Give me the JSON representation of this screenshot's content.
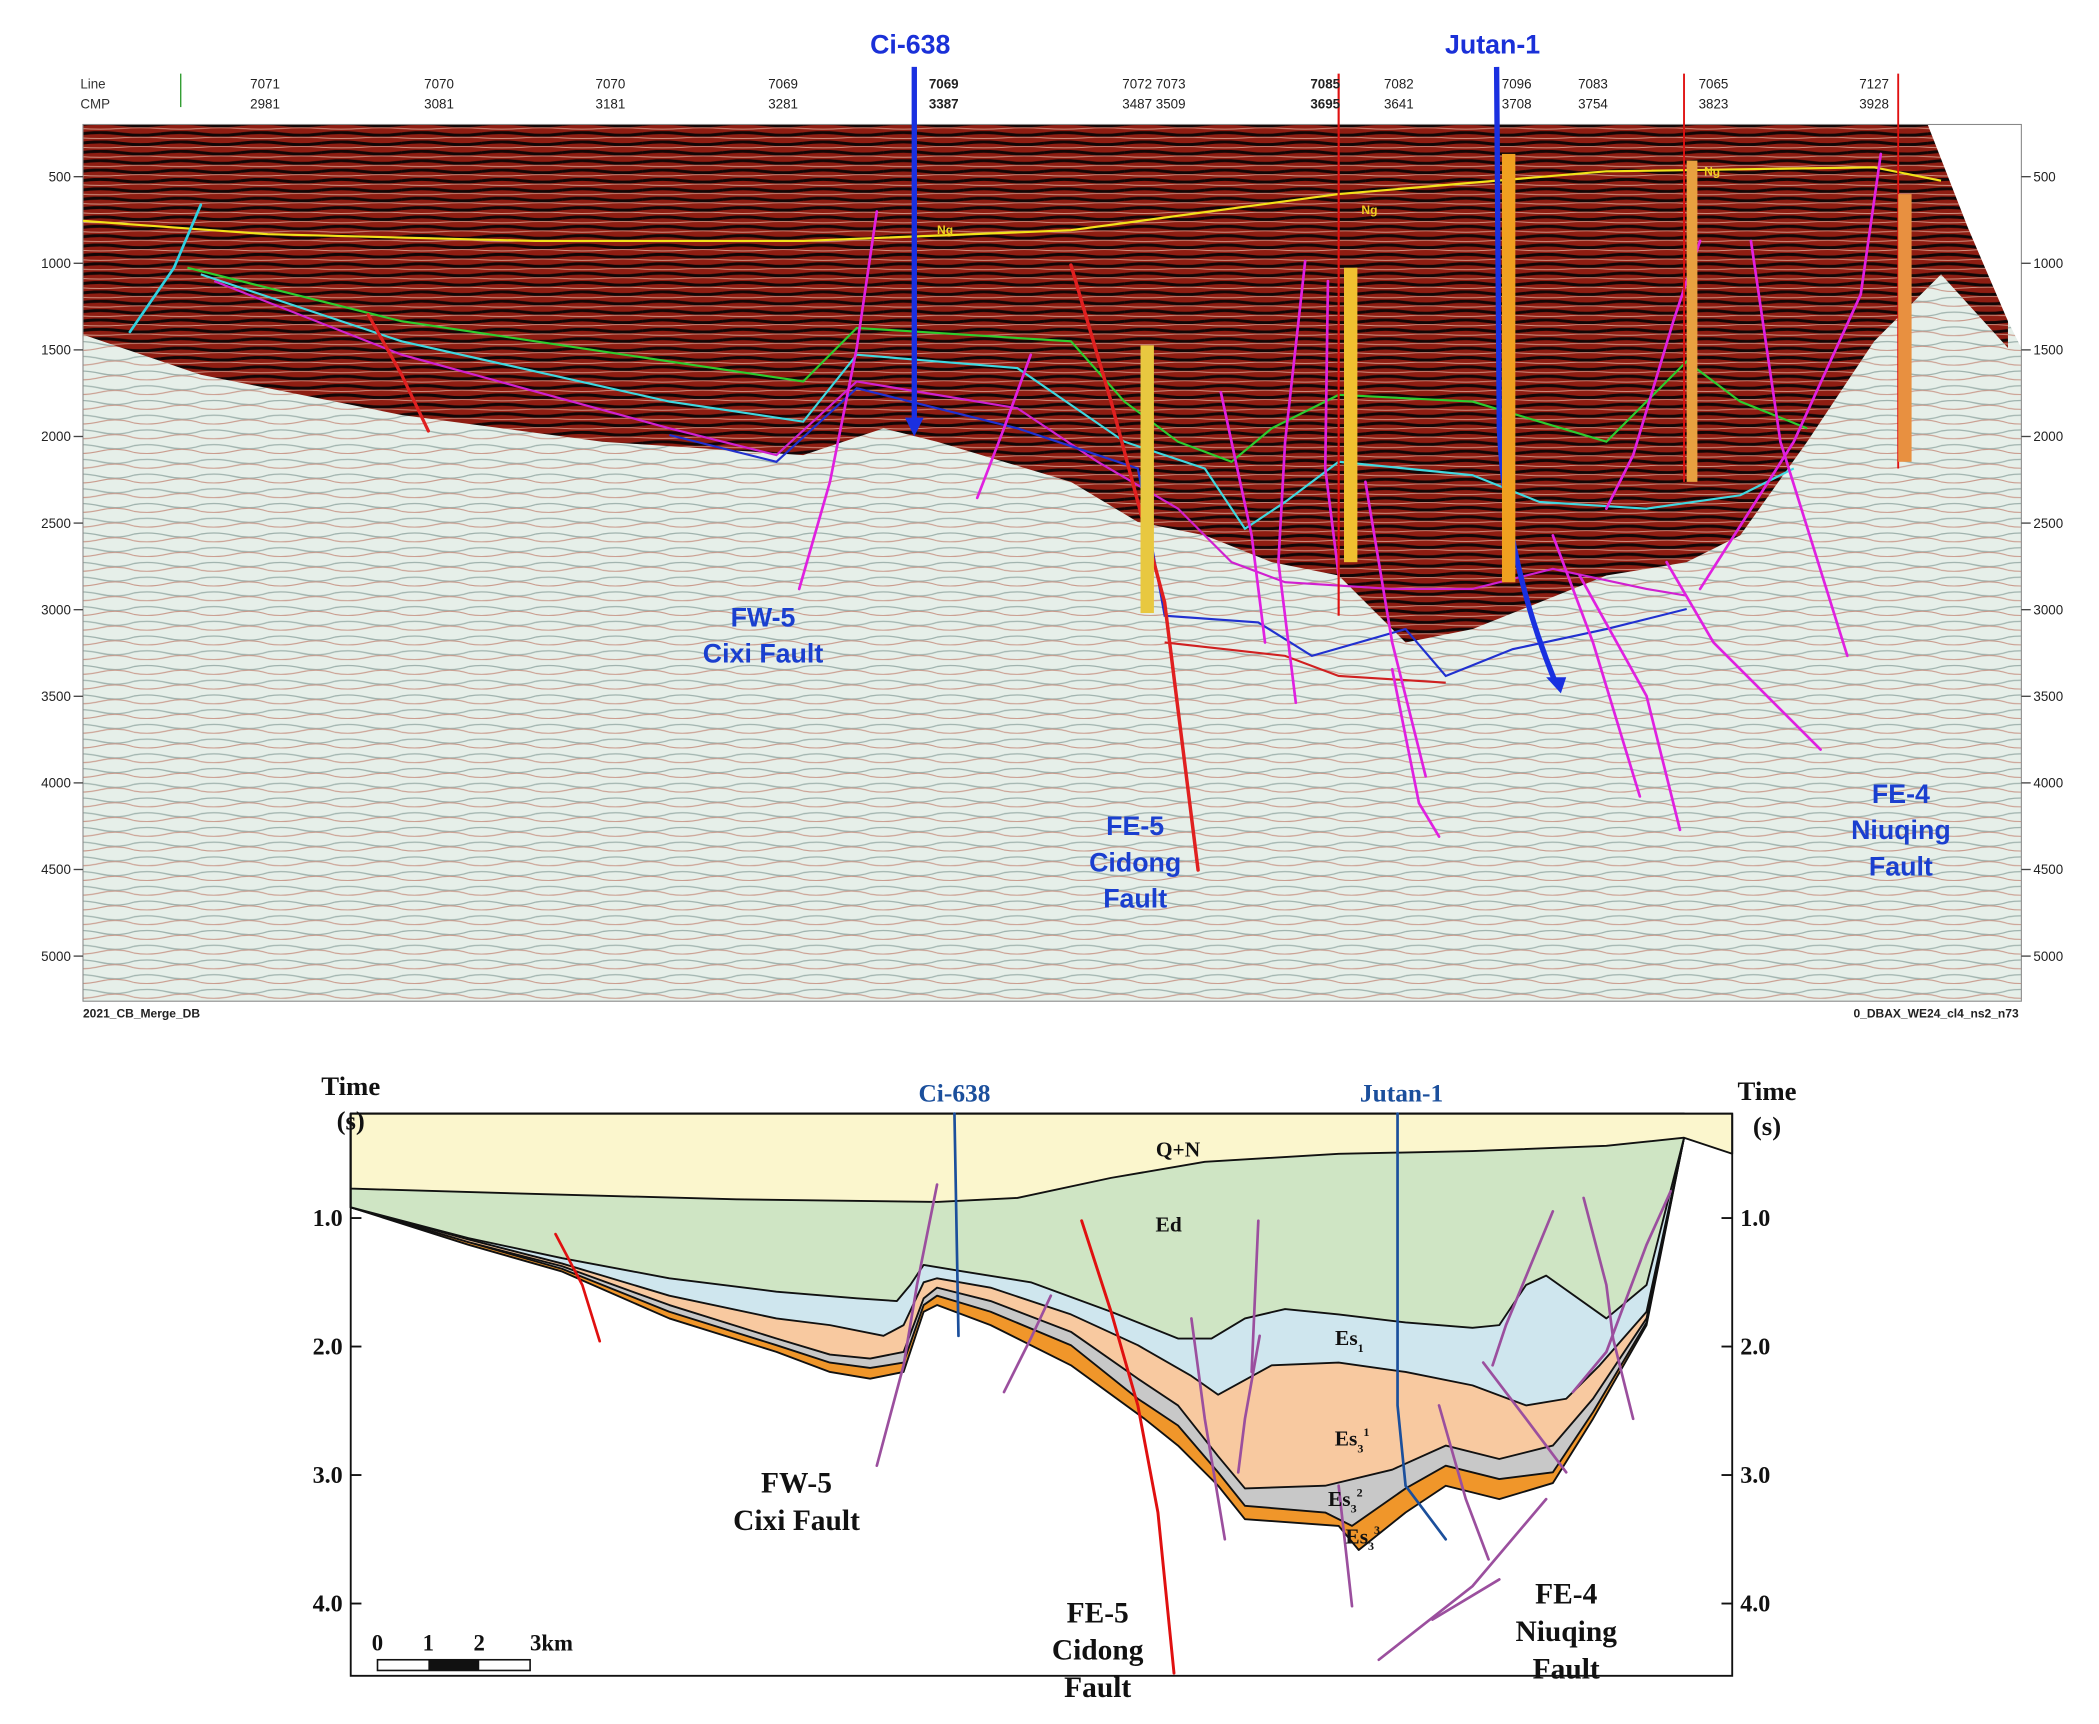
{
  "seismic": {
    "line_label": "Line",
    "cmp_label": "CMP",
    "lines": [
      "7071",
      "7070",
      "7070",
      "7069",
      "7069",
      "7072 7073",
      "7085",
      "7082",
      "7096",
      "7083",
      "7065",
      "7127"
    ],
    "cmps": [
      "2981",
      "3081",
      "3181",
      "3281",
      "3387",
      "3487 3509",
      "3695",
      "3641",
      "3708",
      "3754",
      "3823",
      "3928"
    ],
    "time_ticks": [
      "500",
      "1000",
      "1500",
      "2000",
      "2500",
      "3000",
      "3500",
      "4000",
      "4500",
      "5000"
    ],
    "wells": [
      "Ci-638",
      "Jutan-1"
    ],
    "horizon_tags": [
      "Ng",
      "Ng",
      "Ng"
    ],
    "faults": [
      {
        "lines": [
          "FW-5",
          "Cixi Fault"
        ]
      },
      {
        "lines": [
          "FE-5",
          "Cidong",
          "Fault"
        ]
      },
      {
        "lines": [
          "FE-4",
          "Niuqing",
          "Fault"
        ]
      }
    ],
    "footer_left": "2021_CB_Merge_DB",
    "footer_right": "0_DBAX_WE24_cl4_ns2_n73"
  },
  "section": {
    "axis_title": [
      "Time",
      "(s)"
    ],
    "time_ticks": [
      "1.0",
      "2.0",
      "3.0",
      "4.0"
    ],
    "wells": [
      "Ci-638",
      "Jutan-1"
    ],
    "layers": [
      {
        "base": "Q+N"
      },
      {
        "base": "Ed"
      },
      {
        "base": "Es",
        "sub": "1"
      },
      {
        "base": "Es",
        "sub": "3",
        "sup": "1"
      },
      {
        "base": "Es",
        "sub": "3",
        "sup": "2"
      },
      {
        "base": "Es",
        "sub": "3",
        "sup": "3"
      }
    ],
    "faults": [
      {
        "lines": [
          "FW-5",
          "Cixi Fault"
        ]
      },
      {
        "lines": [
          "FE-5",
          "Cidong",
          "Fault"
        ]
      },
      {
        "lines": [
          "FE-4",
          "Niuqing",
          "Fault"
        ]
      }
    ],
    "scale": [
      "0",
      "1",
      "2",
      "3km"
    ]
  }
}
